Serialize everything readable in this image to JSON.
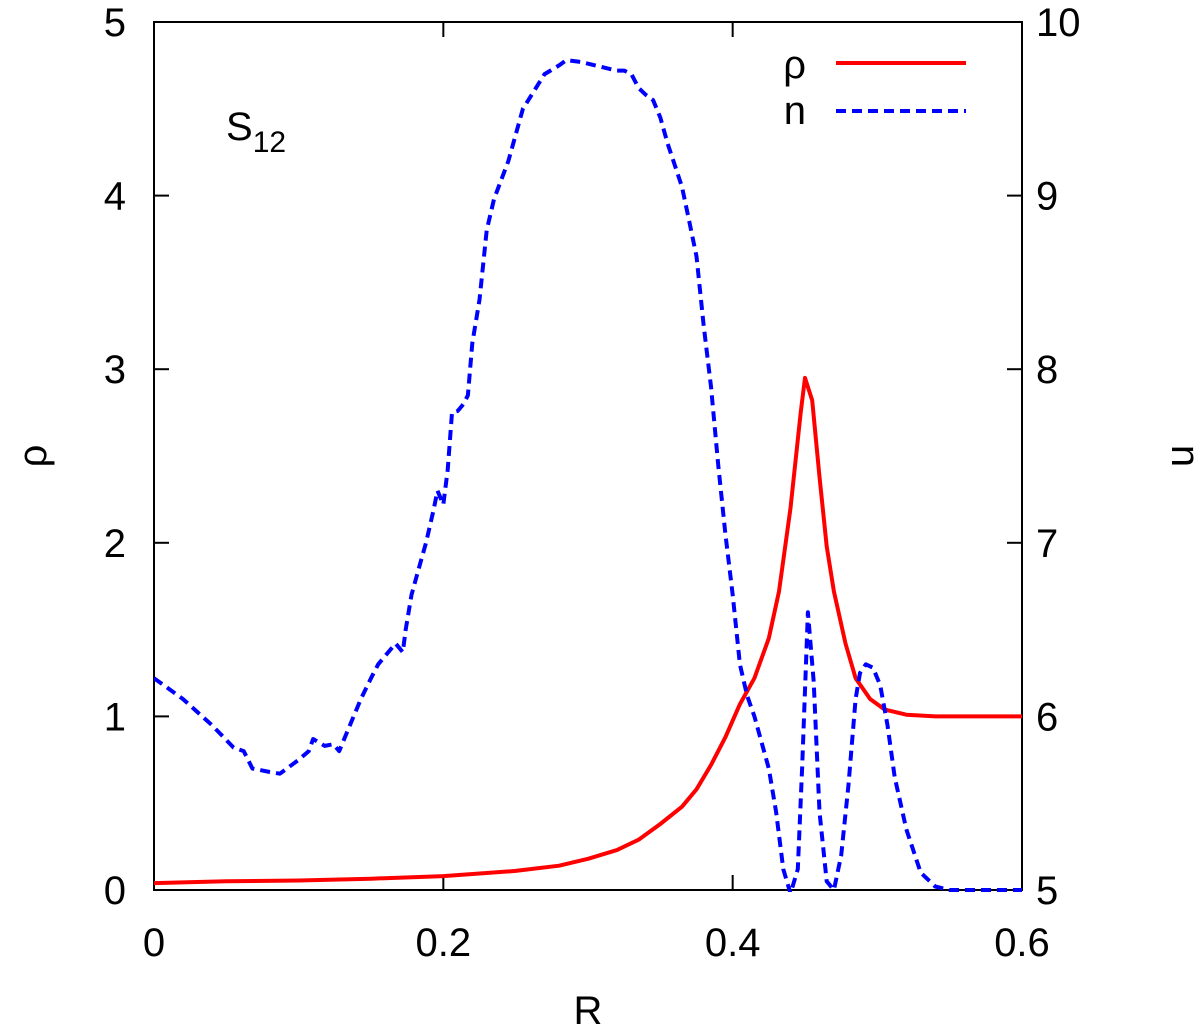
{
  "chart_data": {
    "type": "line",
    "annotation": {
      "main": "S",
      "sub": "12"
    },
    "xlabel": "R",
    "ylabel_left": "ρ",
    "ylabel_right": "n",
    "xlim": [
      0,
      0.6
    ],
    "ylim_left": [
      0,
      5
    ],
    "ylim_right": [
      5,
      10
    ],
    "x_ticks": [
      {
        "value": 0,
        "label": "0"
      },
      {
        "value": 0.2,
        "label": "0.2"
      },
      {
        "value": 0.4,
        "label": "0.4"
      },
      {
        "value": 0.6,
        "label": "0.6"
      }
    ],
    "y_left_ticks": [
      {
        "value": 0,
        "label": "0"
      },
      {
        "value": 1,
        "label": "1"
      },
      {
        "value": 2,
        "label": "2"
      },
      {
        "value": 3,
        "label": "3"
      },
      {
        "value": 4,
        "label": "4"
      },
      {
        "value": 5,
        "label": "5"
      }
    ],
    "y_right_ticks": [
      {
        "value": 5,
        "label": "5"
      },
      {
        "value": 6,
        "label": "6"
      },
      {
        "value": 7,
        "label": "7"
      },
      {
        "value": 8,
        "label": "8"
      },
      {
        "value": 9,
        "label": "9"
      },
      {
        "value": 10,
        "label": "10"
      }
    ],
    "grid": false,
    "legend_position": "top-right",
    "series": [
      {
        "name": "ρ",
        "axis": "left",
        "color": "#ff0000",
        "dash": "solid",
        "x": [
          0,
          0.05,
          0.1,
          0.15,
          0.2,
          0.25,
          0.28,
          0.3,
          0.32,
          0.335,
          0.35,
          0.365,
          0.375,
          0.385,
          0.395,
          0.405,
          0.415,
          0.425,
          0.432,
          0.44,
          0.447,
          0.45,
          0.455,
          0.46,
          0.465,
          0.47,
          0.478,
          0.485,
          0.495,
          0.505,
          0.52,
          0.54,
          0.6
        ],
        "y": [
          0.04,
          0.05,
          0.055,
          0.065,
          0.08,
          0.11,
          0.14,
          0.18,
          0.23,
          0.29,
          0.38,
          0.48,
          0.58,
          0.72,
          0.88,
          1.07,
          1.22,
          1.45,
          1.72,
          2.2,
          2.75,
          2.95,
          2.82,
          2.38,
          1.98,
          1.72,
          1.42,
          1.22,
          1.1,
          1.04,
          1.01,
          1.0,
          1.0
        ]
      },
      {
        "name": "n",
        "axis": "right",
        "color": "#0000ff",
        "dash": "dashed",
        "x": [
          0,
          0.02,
          0.04,
          0.055,
          0.062,
          0.068,
          0.08,
          0.087,
          0.1,
          0.107,
          0.11,
          0.114,
          0.118,
          0.124,
          0.128,
          0.131,
          0.138,
          0.143,
          0.15,
          0.155,
          0.163,
          0.167,
          0.172,
          0.174,
          0.178,
          0.183,
          0.188,
          0.193,
          0.196,
          0.2,
          0.203,
          0.206,
          0.21,
          0.214,
          0.217,
          0.22,
          0.225,
          0.23,
          0.235,
          0.245,
          0.255,
          0.27,
          0.28,
          0.285,
          0.295,
          0.305,
          0.315,
          0.32,
          0.325,
          0.33,
          0.335,
          0.34,
          0.345,
          0.35,
          0.355,
          0.365,
          0.37,
          0.375,
          0.38,
          0.385,
          0.39,
          0.395,
          0.4,
          0.405,
          0.41,
          0.415,
          0.42,
          0.425,
          0.43,
          0.435,
          0.44,
          0.445,
          0.448,
          0.452,
          0.456,
          0.46,
          0.465,
          0.47,
          0.475,
          0.48,
          0.485,
          0.488,
          0.492,
          0.497,
          0.502,
          0.507,
          0.512,
          0.52,
          0.53,
          0.54,
          0.55,
          0.57,
          0.6
        ],
        "y": [
          6.22,
          6.1,
          5.95,
          5.82,
          5.8,
          5.7,
          5.68,
          5.67,
          5.75,
          5.8,
          5.87,
          5.85,
          5.83,
          5.84,
          5.8,
          5.86,
          6.0,
          6.1,
          6.22,
          6.3,
          6.38,
          6.42,
          6.37,
          6.5,
          6.7,
          6.85,
          7.0,
          7.18,
          7.3,
          7.22,
          7.42,
          7.75,
          7.76,
          7.8,
          7.85,
          8.15,
          8.4,
          8.8,
          8.98,
          9.2,
          9.5,
          9.7,
          9.75,
          9.78,
          9.77,
          9.75,
          9.73,
          9.72,
          9.72,
          9.7,
          9.62,
          9.58,
          9.55,
          9.45,
          9.3,
          9.05,
          8.85,
          8.65,
          8.25,
          7.9,
          7.45,
          7.05,
          6.7,
          6.3,
          6.12,
          6.0,
          5.85,
          5.7,
          5.45,
          5.12,
          4.98,
          5.12,
          5.7,
          6.6,
          6.2,
          5.45,
          5.05,
          5.0,
          5.2,
          5.6,
          6.1,
          6.25,
          6.3,
          6.28,
          6.18,
          5.95,
          5.65,
          5.35,
          5.1,
          5.02,
          5.0,
          5.0,
          5.0
        ]
      }
    ]
  }
}
